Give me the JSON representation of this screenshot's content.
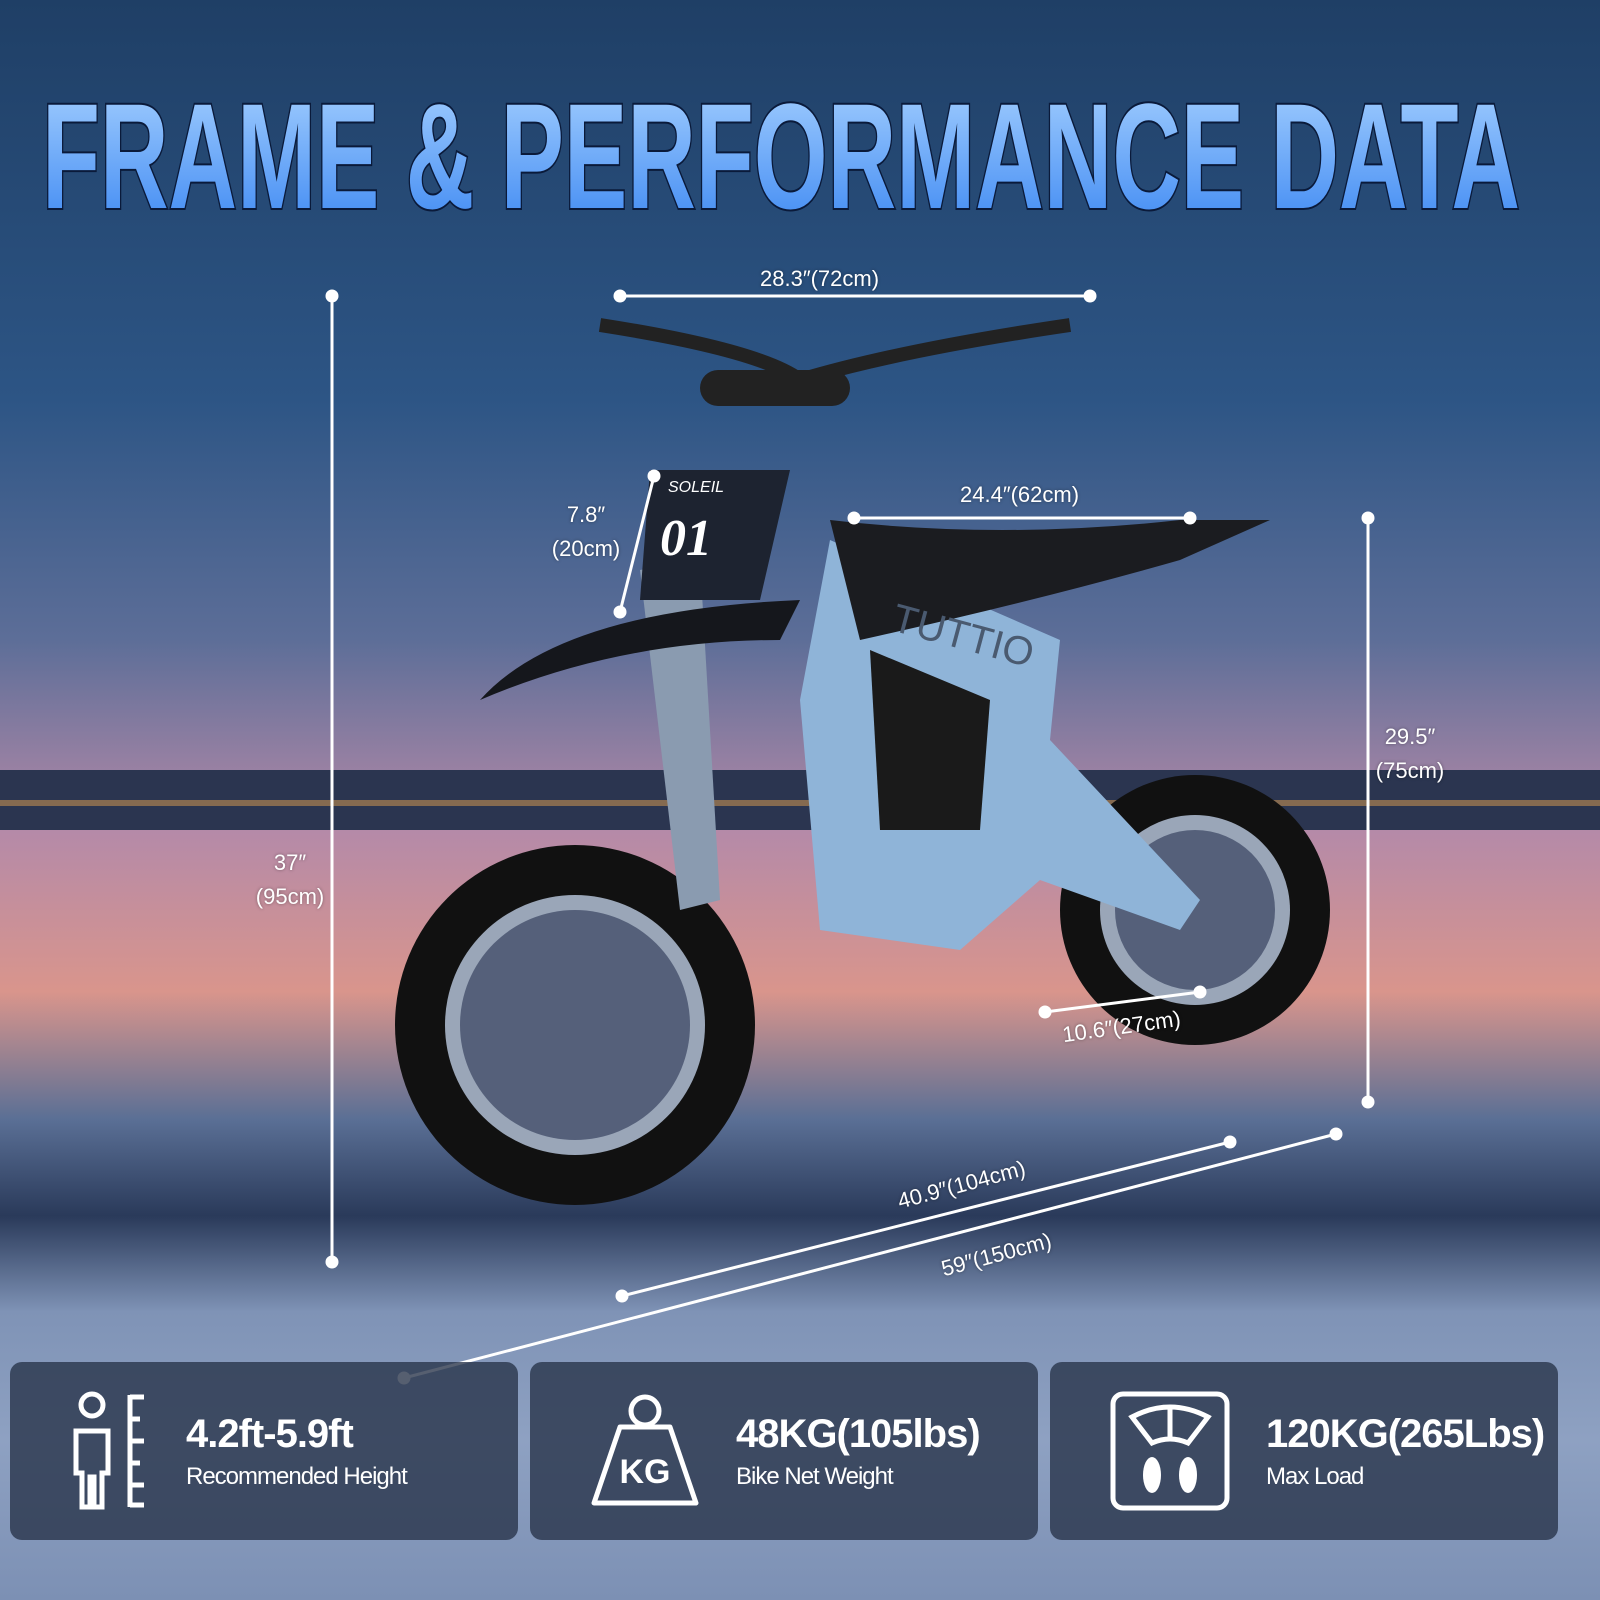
{
  "title": "FRAME & PERFORMANCE DATA",
  "branding": {
    "logo": "TUTTIO",
    "plate_name": "SOLEIL",
    "plate_number": "01"
  },
  "dimensions": {
    "handlebar_width": "28.3″(72cm)",
    "total_height": [
      "37″",
      "(95cm)"
    ],
    "plate_height": [
      "7.8″",
      "(20cm)"
    ],
    "seat_length": "24.4″(62cm)",
    "seat_height": [
      "29.5″",
      "(75cm)"
    ],
    "ground_clearance": "10.6″(27cm)",
    "wheelbase": "40.9″(104cm)",
    "total_length": "59″(150cm)"
  },
  "specs": [
    {
      "icon": "height-ruler-person-icon",
      "value": "4.2ft-5.9ft",
      "label": "Recommended Height"
    },
    {
      "icon": "kg-weight-icon",
      "value": "48KG(105lbs)",
      "label": "Bike Net Weight",
      "icon_text": "KG"
    },
    {
      "icon": "scale-footprints-icon",
      "value": "120KG(265Lbs)",
      "label": "Max Load"
    }
  ],
  "colors": {
    "title_fill": "#4a90f0",
    "bike_frame": "#8fb4d8",
    "card_bg": "#263248"
  }
}
